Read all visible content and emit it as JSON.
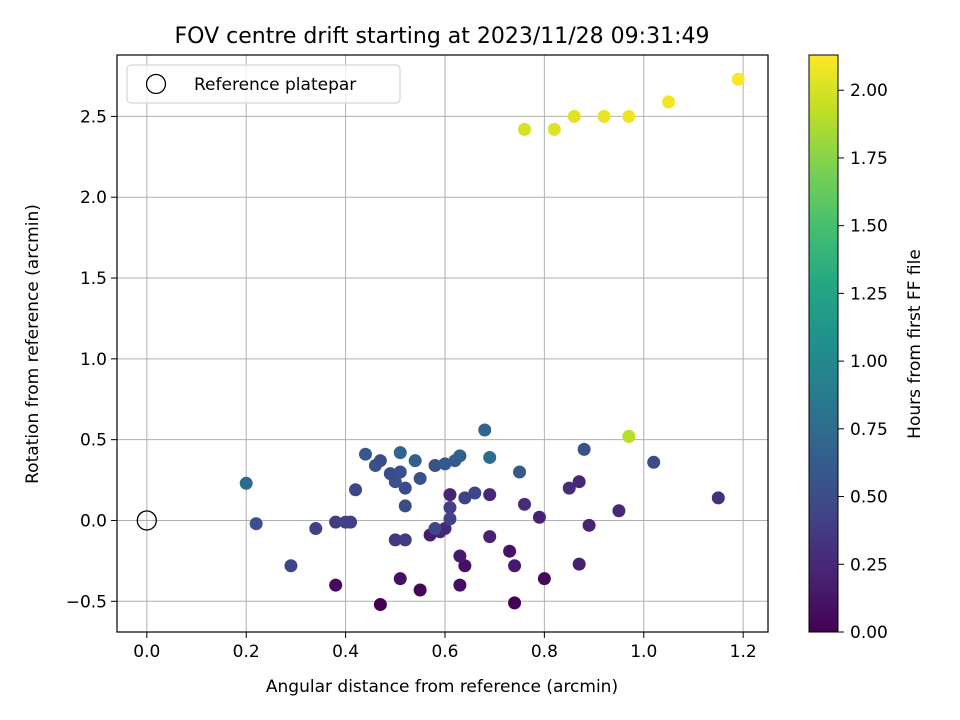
{
  "chart_data": {
    "type": "scatter",
    "title": "FOV centre drift starting at 2023/11/28 09:31:49",
    "xlabel": "Angular distance from reference (arcmin)",
    "ylabel": "Rotation from reference (arcmin)",
    "xlim": [
      -0.06,
      1.25
    ],
    "ylim": [
      -0.69,
      2.88
    ],
    "xticks": [
      0.0,
      0.2,
      0.4,
      0.6,
      0.8,
      1.0,
      1.2
    ],
    "xtick_labels": [
      "0.0",
      "0.2",
      "0.4",
      "0.6",
      "0.8",
      "1.0",
      "1.2"
    ],
    "yticks": [
      -0.5,
      0.0,
      0.5,
      1.0,
      1.5,
      2.0,
      2.5
    ],
    "ytick_labels": [
      "−0.5",
      "0.0",
      "0.5",
      "1.0",
      "1.5",
      "2.0",
      "2.5"
    ],
    "grid": true,
    "legend": {
      "position": "top-left",
      "entries": [
        "Reference platepar"
      ]
    },
    "reference_point": {
      "x": 0.0,
      "y": 0.0,
      "label": "Reference platepar"
    },
    "colorbar": {
      "label": "Hours from first FF file",
      "colormap": "viridis",
      "range": [
        0.0,
        2.13
      ],
      "ticks": [
        0.0,
        0.25,
        0.5,
        0.75,
        1.0,
        1.25,
        1.5,
        1.75,
        2.0
      ],
      "tick_labels": [
        "0.00",
        "0.25",
        "0.50",
        "0.75",
        "1.00",
        "1.25",
        "1.50",
        "1.75",
        "2.00"
      ]
    },
    "points": [
      {
        "x": 0.47,
        "y": -0.52,
        "t": 0.0
      },
      {
        "x": 0.74,
        "y": -0.51,
        "t": 0.0
      },
      {
        "x": 0.55,
        "y": -0.43,
        "t": 0.03
      },
      {
        "x": 0.38,
        "y": -0.4,
        "t": 0.05
      },
      {
        "x": 0.63,
        "y": -0.4,
        "t": 0.08
      },
      {
        "x": 0.8,
        "y": -0.36,
        "t": 0.05
      },
      {
        "x": 0.51,
        "y": -0.36,
        "t": 0.1
      },
      {
        "x": 0.64,
        "y": -0.28,
        "t": 0.1
      },
      {
        "x": 0.74,
        "y": -0.28,
        "t": 0.15
      },
      {
        "x": 0.87,
        "y": -0.27,
        "t": 0.2
      },
      {
        "x": 0.63,
        "y": -0.22,
        "t": 0.15
      },
      {
        "x": 0.73,
        "y": -0.19,
        "t": 0.12
      },
      {
        "x": 0.57,
        "y": -0.09,
        "t": 0.17
      },
      {
        "x": 0.69,
        "y": -0.1,
        "t": 0.2
      },
      {
        "x": 0.59,
        "y": -0.07,
        "t": 0.22
      },
      {
        "x": 0.6,
        "y": -0.05,
        "t": 0.25
      },
      {
        "x": 0.89,
        "y": -0.03,
        "t": 0.22
      },
      {
        "x": 0.79,
        "y": 0.02,
        "t": 0.2
      },
      {
        "x": 0.95,
        "y": 0.06,
        "t": 0.25
      },
      {
        "x": 0.76,
        "y": 0.1,
        "t": 0.27
      },
      {
        "x": 0.69,
        "y": 0.16,
        "t": 0.25
      },
      {
        "x": 0.61,
        "y": 0.16,
        "t": 0.22
      },
      {
        "x": 0.85,
        "y": 0.2,
        "t": 0.27
      },
      {
        "x": 0.87,
        "y": 0.24,
        "t": 0.24
      },
      {
        "x": 1.15,
        "y": 0.14,
        "t": 0.3
      },
      {
        "x": 0.5,
        "y": -0.12,
        "t": 0.35
      },
      {
        "x": 0.52,
        "y": -0.12,
        "t": 0.38
      },
      {
        "x": 0.29,
        "y": -0.28,
        "t": 0.45
      },
      {
        "x": 0.34,
        "y": -0.05,
        "t": 0.4
      },
      {
        "x": 0.38,
        "y": -0.01,
        "t": 0.38
      },
      {
        "x": 0.4,
        "y": -0.01,
        "t": 0.42
      },
      {
        "x": 0.41,
        "y": -0.01,
        "t": 0.4
      },
      {
        "x": 0.22,
        "y": -0.02,
        "t": 0.52
      },
      {
        "x": 0.58,
        "y": -0.05,
        "t": 0.45
      },
      {
        "x": 0.61,
        "y": 0.01,
        "t": 0.42
      },
      {
        "x": 0.61,
        "y": 0.08,
        "t": 0.4
      },
      {
        "x": 0.64,
        "y": 0.14,
        "t": 0.42
      },
      {
        "x": 0.66,
        "y": 0.17,
        "t": 0.45
      },
      {
        "x": 0.42,
        "y": 0.19,
        "t": 0.45
      },
      {
        "x": 0.52,
        "y": 0.09,
        "t": 0.5
      },
      {
        "x": 0.52,
        "y": 0.2,
        "t": 0.5
      },
      {
        "x": 0.5,
        "y": 0.24,
        "t": 0.52
      },
      {
        "x": 0.49,
        "y": 0.29,
        "t": 0.5
      },
      {
        "x": 0.51,
        "y": 0.3,
        "t": 0.52
      },
      {
        "x": 0.55,
        "y": 0.26,
        "t": 0.55
      },
      {
        "x": 0.46,
        "y": 0.34,
        "t": 0.55
      },
      {
        "x": 0.47,
        "y": 0.37,
        "t": 0.5
      },
      {
        "x": 0.44,
        "y": 0.41,
        "t": 0.6
      },
      {
        "x": 0.58,
        "y": 0.34,
        "t": 0.55
      },
      {
        "x": 0.6,
        "y": 0.35,
        "t": 0.6
      },
      {
        "x": 0.62,
        "y": 0.37,
        "t": 0.62
      },
      {
        "x": 0.63,
        "y": 0.4,
        "t": 0.65
      },
      {
        "x": 0.54,
        "y": 0.37,
        "t": 0.65
      },
      {
        "x": 0.51,
        "y": 0.42,
        "t": 0.7
      },
      {
        "x": 0.88,
        "y": 0.44,
        "t": 0.55
      },
      {
        "x": 1.02,
        "y": 0.36,
        "t": 0.5
      },
      {
        "x": 0.75,
        "y": 0.3,
        "t": 0.6
      },
      {
        "x": 0.69,
        "y": 0.39,
        "t": 0.75
      },
      {
        "x": 0.68,
        "y": 0.56,
        "t": 0.7
      },
      {
        "x": 0.2,
        "y": 0.23,
        "t": 0.75
      },
      {
        "x": 0.97,
        "y": 0.52,
        "t": 1.92
      },
      {
        "x": 0.97,
        "y": 0.52,
        "t": 1.9
      },
      {
        "x": 0.76,
        "y": 2.42,
        "t": 2.0
      },
      {
        "x": 0.82,
        "y": 2.42,
        "t": 2.02
      },
      {
        "x": 0.86,
        "y": 2.5,
        "t": 2.04
      },
      {
        "x": 0.92,
        "y": 2.5,
        "t": 2.06
      },
      {
        "x": 0.97,
        "y": 2.5,
        "t": 2.08
      },
      {
        "x": 1.05,
        "y": 2.59,
        "t": 2.1
      },
      {
        "x": 1.19,
        "y": 2.73,
        "t": 2.12
      }
    ]
  }
}
